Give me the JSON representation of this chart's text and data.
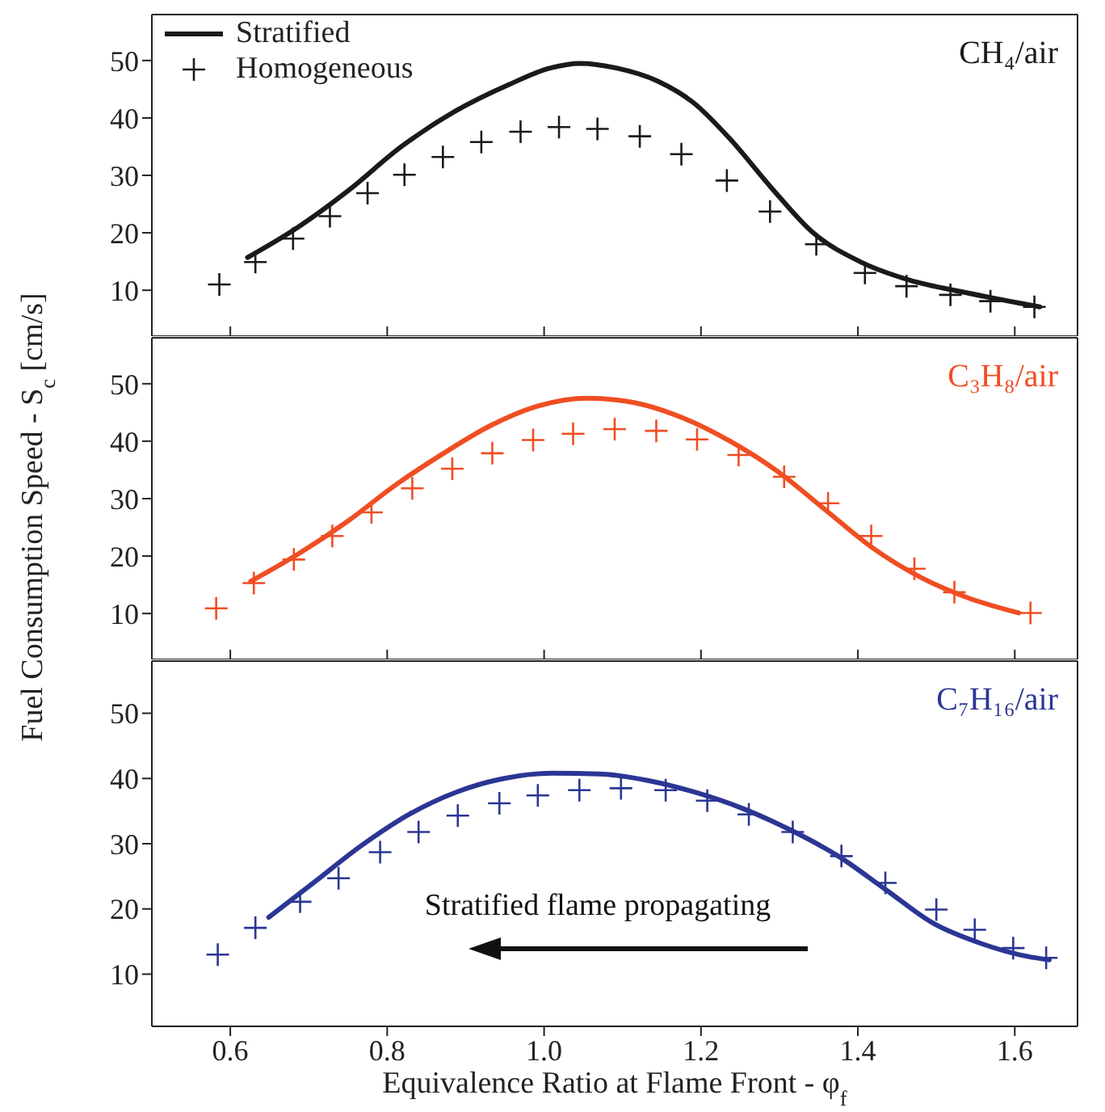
{
  "chart_data": [
    {
      "type": "line",
      "title": "CH₄/air",
      "xlim": [
        0.5,
        1.68
      ],
      "xticks": [
        0.6,
        0.8,
        1,
        1.2,
        1.4,
        1.6
      ],
      "ylim": [
        2,
        58
      ],
      "yticks": [
        10,
        20,
        30,
        40,
        50
      ],
      "tick_labels": "y",
      "legend": "top left",
      "series": [
        {
          "name": "Stratified",
          "color": "#1a1a1a",
          "marker": "none",
          "x": [
            0.622,
            0.681,
            0.75,
            0.818,
            0.887,
            0.955,
            1.008,
            1.046,
            1.092,
            1.145,
            1.19,
            1.236,
            1.29,
            1.343,
            1.404,
            1.465,
            1.541,
            1.632
          ],
          "values": [
            15.7,
            20.5,
            27.3,
            35,
            41.2,
            45.8,
            48.7,
            49.5,
            48.7,
            46.4,
            42.7,
            36.5,
            27.8,
            20,
            14.9,
            11.8,
            9.5,
            7.1
          ]
        },
        {
          "name": "Homogeneous",
          "type": "scatter",
          "color": "#1a1a1a",
          "marker": "cross",
          "x": [
            0.586,
            0.632,
            0.68,
            0.727,
            0.775,
            0.822,
            0.871,
            0.92,
            0.97,
            1.019,
            1.068,
            1.122,
            1.175,
            1.233,
            1.288,
            1.347,
            1.409,
            1.462,
            1.518,
            1.569,
            1.625
          ],
          "values": [
            11,
            14.9,
            19,
            22.9,
            26.9,
            30.1,
            33.2,
            35.8,
            37.6,
            38.4,
            38.1,
            36.8,
            33.7,
            29.1,
            23.7,
            18,
            13,
            10.7,
            9.2,
            8.1,
            7.1
          ]
        }
      ]
    },
    {
      "type": "line",
      "title": "C₃H₈/air",
      "ylabel": "Fuel Consumption Speed - S$_{c}$ [cm/s]",
      "xlim": [
        0.5,
        1.68
      ],
      "xticks": [
        0.6,
        0.8,
        1,
        1.2,
        1.4,
        1.6
      ],
      "ylim": [
        2,
        58
      ],
      "yticks": [
        10,
        20,
        30,
        40,
        50
      ],
      "tick_labels": "y",
      "series": [
        {
          "color": "#f04e23",
          "marker": "none",
          "x": [
            0.626,
            0.687,
            0.75,
            0.81,
            0.872,
            0.933,
            0.994,
            1.055,
            1.115,
            1.176,
            1.237,
            1.297,
            1.358,
            1.419,
            1.48,
            1.541,
            1.605
          ],
          "values": [
            15.6,
            20.4,
            26.1,
            32.3,
            37.9,
            42.8,
            46.2,
            47.5,
            46.7,
            44.1,
            40,
            34.8,
            28.1,
            21.4,
            16.3,
            12.7,
            10.1
          ]
        },
        {
          "type": "scatter",
          "color": "#f04e23",
          "marker": "cross",
          "x": [
            0.582,
            0.63,
            0.681,
            0.73,
            0.78,
            0.832,
            0.883,
            0.934,
            0.986,
            1.037,
            1.09,
            1.143,
            1.195,
            1.248,
            1.306,
            1.362,
            1.417,
            1.472,
            1.523,
            1.62
          ],
          "values": [
            10.9,
            15.3,
            19.4,
            23.5,
            27.6,
            31.8,
            35.2,
            37.9,
            40.2,
            41.3,
            42.1,
            41.8,
            40.3,
            37.6,
            33.8,
            29.2,
            23.5,
            17.8,
            13.7,
            10.1
          ]
        }
      ]
    },
    {
      "type": "line",
      "title": "C₇H₁₆/air",
      "xlabel": "Equivalence Ratio at Flame Front - φ$_{f}$",
      "xlim": [
        0.5,
        1.68
      ],
      "xticks": [
        0.6,
        0.8,
        {
          "value": 1,
          "label": "1.0"
        },
        1.2,
        1.4,
        1.6
      ],
      "ylim": [
        2,
        58
      ],
      "yticks": [
        10,
        20,
        30,
        40,
        50
      ],
      "annotations": [
        "Stratified flame propagating"
      ],
      "series": [
        {
          "color": "#2b3694",
          "marker": "none",
          "x": [
            0.649,
            0.706,
            0.767,
            0.828,
            0.888,
            0.949,
            1.01,
            1.071,
            1.132,
            1.192,
            1.253,
            1.314,
            1.375,
            1.435,
            1.496,
            1.557,
            1.617,
            1.644
          ],
          "values": [
            18.7,
            24,
            29.7,
            34.5,
            37.9,
            40,
            40.8,
            40.7,
            39.7,
            37.9,
            35.4,
            32.1,
            28.1,
            23,
            17.8,
            14.7,
            12.7,
            12.2
          ]
        },
        {
          "type": "scatter",
          "color": "#2b3694",
          "marker": "cross",
          "x": [
            0.584,
            0.632,
            0.689,
            0.738,
            0.791,
            0.84,
            0.89,
            0.943,
            0.992,
            1.045,
            1.098,
            1.155,
            1.208,
            1.261,
            1.317,
            1.379,
            1.435,
            1.5,
            1.549,
            1.598,
            1.64
          ],
          "values": [
            13,
            17.1,
            21.1,
            24.7,
            28.7,
            31.8,
            34.3,
            36.2,
            37.4,
            38.2,
            38.5,
            38.2,
            36.6,
            34.5,
            31.8,
            28.1,
            24,
            19.9,
            16.8,
            14,
            12.5
          ]
        }
      ]
    }
  ]
}
